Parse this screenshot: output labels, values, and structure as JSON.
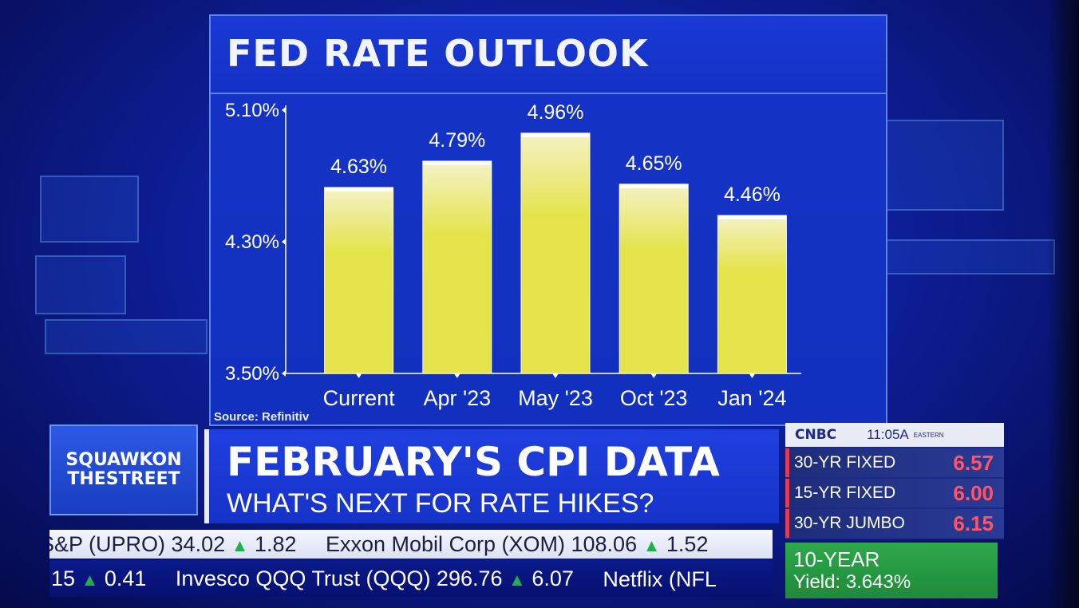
{
  "chart_data": {
    "type": "bar",
    "title": "FED RATE OUTLOOK",
    "categories": [
      "Current",
      "Apr '23",
      "May '23",
      "Oct '23",
      "Jan '24"
    ],
    "values": [
      4.63,
      4.79,
      4.96,
      4.65,
      4.46
    ],
    "value_labels": [
      "4.63%",
      "4.79%",
      "4.96%",
      "4.65%",
      "4.46%"
    ],
    "yticks": [
      5.1,
      4.3,
      3.5
    ],
    "ytick_labels": [
      "5.10%",
      "4.30%",
      "3.50%"
    ],
    "ylim": [
      3.5,
      5.1
    ],
    "xlabel": "",
    "ylabel": "",
    "grid": false,
    "colors": {
      "bar": "#e4e34a",
      "bar_highlight": "#f4f2c6",
      "label": "#ffffff"
    }
  },
  "source": "Source: Refinitiv",
  "show": {
    "line1": "SQUAWKON",
    "line2": "THESTREET"
  },
  "headline": "FEBRUARY'S CPI DATA",
  "subheadline": "WHAT'S NEXT FOR RATE HIKES?",
  "network": {
    "name": "CNBC",
    "time": "11:05A",
    "zone": "EASTERN"
  },
  "rates": [
    {
      "label": "30-YR FIXED",
      "value": "6.57"
    },
    {
      "label": "15-YR FIXED",
      "value": "6.00"
    },
    {
      "label": "30-YR JUMBO",
      "value": "6.15"
    }
  ],
  "yield": {
    "title": "10-YEAR",
    "value": "Yield: 3.643%"
  },
  "ticker_top": [
    {
      "text": "S&P (UPRO) 34.02",
      "change": "1.82"
    },
    {
      "text": "Exxon Mobil Corp (XOM) 108.06",
      "change": "1.52"
    }
  ],
  "ticker_bottom": [
    {
      "text": "15",
      "change": "0.41"
    },
    {
      "text": "Invesco QQQ Trust (QQQ) 296.76",
      "change": "6.07"
    },
    {
      "text": "Netflix (NFL",
      "change": ""
    }
  ]
}
